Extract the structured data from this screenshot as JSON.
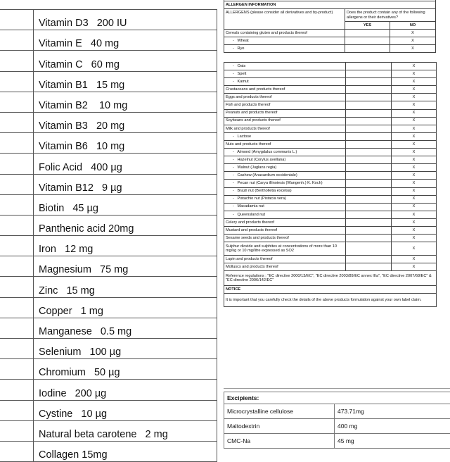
{
  "nutrients": [
    "Vitamin D3   200 IU",
    "Vitamin E   40 mg",
    "Vitamin C   60 mg",
    "Vitamin B1   15 mg",
    "Vitamin B2    10 mg",
    "Vitamin B3   20 mg",
    "Vitamin B6   10 mg",
    "Folic Acid   400 µg",
    "Vitamin B12   9 µg",
    "Biotin   45 µg",
    "Panthenic acid 20mg",
    "Iron   12 mg",
    "Magnesium   75 mg",
    "Zinc   15 mg",
    "Copper   1 mg",
    "Manganese   0.5 mg",
    "Selenium   100 µg",
    "Chromium   50 µg",
    "Iodine   200 µg",
    "Cystine   10 µg",
    "Natural beta carotene   2 mg",
    "Collagen 15mg"
  ],
  "allergen": {
    "title": "ALLERGEN INFORMATION",
    "col_allergens": "ALLERGENS (please consider all derivatives and by-product)",
    "col_question": "Does the product contain any of the following allergens or their derivatives?",
    "col_yes": "YES",
    "col_no": "NO",
    "rows_part1": [
      {
        "label": "Cereals containing gluten and products thereof",
        "sub": false,
        "no": "X"
      },
      {
        "label": "-    Wheat",
        "sub": true,
        "no": "X"
      },
      {
        "label": "-    Rye",
        "sub": true,
        "no": "X"
      }
    ],
    "rows_part2": [
      {
        "label": "-    Oats",
        "sub": true,
        "no": "X"
      },
      {
        "label": "-    Spelt",
        "sub": true,
        "no": "X"
      },
      {
        "label": "-    Kamut",
        "sub": true,
        "no": "X"
      },
      {
        "label": "Crustaceans and products thereof",
        "sub": false,
        "no": "X"
      },
      {
        "label": "Eggs and products thereof",
        "sub": false,
        "no": "X"
      },
      {
        "label": "Fish and products thereof",
        "sub": false,
        "no": "X"
      },
      {
        "label": "Peanuts and products thereof",
        "sub": false,
        "no": "X"
      },
      {
        "label": "Soybeans and products thereof",
        "sub": false,
        "no": "X"
      },
      {
        "label": "Milk and products thereof",
        "sub": false,
        "no": "X"
      },
      {
        "label": "-    Lactose",
        "sub": true,
        "no": "X"
      },
      {
        "label": "Nuts and products thereof",
        "sub": false,
        "no": "X"
      },
      {
        "label": "-    Almond (Amygdalus communis L.)",
        "sub": true,
        "no": "X"
      },
      {
        "label": "-    Hazelnut (Corylus avellana)",
        "sub": true,
        "no": "X"
      },
      {
        "label": "-    Walnut (Juglans regia)",
        "sub": true,
        "no": "X"
      },
      {
        "label": "-    Cashew (Anacardium occidentale)",
        "sub": true,
        "no": "X"
      },
      {
        "label": "-    Pecan nut (Carya illinoiesis (Wangenh.) K. Koch)",
        "sub": true,
        "no": "X"
      },
      {
        "label": "-    Brazil nut (Bertholletia excelsa)",
        "sub": true,
        "no": "X"
      },
      {
        "label": "-    Pistachio nut (Pistacia vera)",
        "sub": true,
        "no": "X"
      },
      {
        "label": "-    Macadamia nut",
        "sub": true,
        "no": "X"
      },
      {
        "label": "-    Queensland nut",
        "sub": true,
        "no": "X"
      },
      {
        "label": "Celery and products thereof",
        "sub": false,
        "no": "X"
      },
      {
        "label": "Mustard and products thereof",
        "sub": false,
        "no": "X"
      },
      {
        "label": "Sesame seeds and products thereof",
        "sub": false,
        "no": "X"
      },
      {
        "label": "Sulphur dioxide and sulphites at concentrations of more than 10 mg/kg or 10 mg/litre expressed as SO2",
        "sub": false,
        "no": "X"
      },
      {
        "label": "Lupin and products thereof",
        "sub": false,
        "no": "X"
      },
      {
        "label": "Molluscs and products thereof",
        "sub": false,
        "no": "X"
      }
    ],
    "reference": "Reference regulations : \"EC directive 2000/13/EC\", \"EC directive 2003/89/EC annex IIIa\", \"EC directive 2007/68/EC\" & \"EC directive 2006/142/EC\"",
    "notice_title": "NOTICE",
    "notice_text": "It is important that you carefully check the details of the above products formulation against your own label claim."
  },
  "excipients": {
    "title": "Excipients:",
    "rows": [
      {
        "name": "Microcrystalline cellulose",
        "amount": "473.71mg"
      },
      {
        "name": "Maltodextrin",
        "amount": "400 mg"
      },
      {
        "name": "CMC-Na",
        "amount": "45 mg"
      }
    ]
  }
}
